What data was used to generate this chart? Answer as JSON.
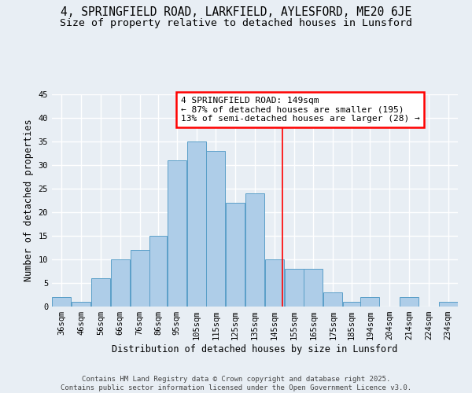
{
  "title_line1": "4, SPRINGFIELD ROAD, LARKFIELD, AYLESFORD, ME20 6JE",
  "title_line2": "Size of property relative to detached houses in Lunsford",
  "xlabel": "Distribution of detached houses by size in Lunsford",
  "ylabel": "Number of detached properties",
  "footer": "Contains HM Land Registry data © Crown copyright and database right 2025.\nContains public sector information licensed under the Open Government Licence v3.0.",
  "bar_labels": [
    "36sqm",
    "46sqm",
    "56sqm",
    "66sqm",
    "76sqm",
    "86sqm",
    "95sqm",
    "105sqm",
    "115sqm",
    "125sqm",
    "135sqm",
    "145sqm",
    "155sqm",
    "165sqm",
    "175sqm",
    "185sqm",
    "194sqm",
    "204sqm",
    "214sqm",
    "224sqm",
    "234sqm"
  ],
  "bar_values": [
    2,
    1,
    6,
    10,
    12,
    15,
    31,
    35,
    33,
    22,
    24,
    10,
    8,
    8,
    3,
    1,
    2,
    0,
    2,
    0,
    1
  ],
  "bar_edges": [
    31,
    41,
    51,
    61,
    71,
    81,
    90,
    100,
    110,
    120,
    130,
    140,
    150,
    160,
    170,
    180,
    189,
    199,
    209,
    219,
    229,
    239
  ],
  "bar_color": "#aecde8",
  "bar_edge_color": "#5a9fc8",
  "reference_line_x": 149,
  "annotation_text": "4 SPRINGFIELD ROAD: 149sqm\n← 87% of detached houses are smaller (195)\n13% of semi-detached houses are larger (28) →",
  "ylim": [
    0,
    45
  ],
  "yticks": [
    0,
    5,
    10,
    15,
    20,
    25,
    30,
    35,
    40,
    45
  ],
  "background_color": "#e8eef4",
  "grid_color": "#ffffff",
  "title_fontsize": 10.5,
  "subtitle_fontsize": 9.5,
  "axis_label_fontsize": 8.5,
  "tick_fontsize": 7.5,
  "footer_fontsize": 6.5,
  "annotation_fontsize": 8
}
